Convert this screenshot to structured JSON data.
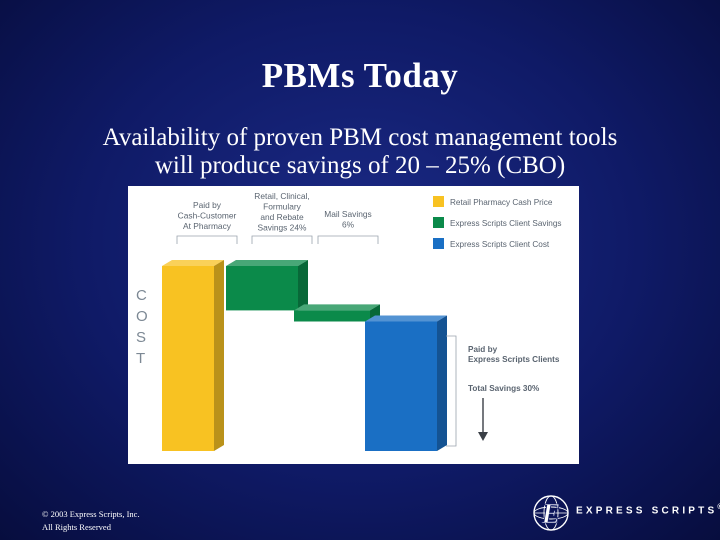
{
  "slide": {
    "title": "PBMs Today",
    "subtitle_line1": "Availability of proven PBM cost management tools",
    "subtitle_line2": "will produce savings of 20 – 25% (CBO)"
  },
  "footer": {
    "line1": "© 2003 Express Scripts, Inc.",
    "line2": "All Rights Reserved"
  },
  "logo": {
    "text": "EXPRESS SCRIPTS",
    "trademark": "®"
  },
  "chart_data": {
    "type": "waterfall",
    "title": "",
    "y_axis_letters": [
      "C",
      "O",
      "S",
      "T"
    ],
    "steps": [
      {
        "name": "Paid by Cash-Customer At Pharmacy",
        "label_lines": [
          "Paid by",
          "Cash-Customer",
          "At Pharmacy"
        ],
        "kind": "total",
        "start": 0,
        "end": 100,
        "color": "#f8c222"
      },
      {
        "name": "Retail, Clinical, Formulary and Rebate Savings 24%",
        "label_lines": [
          "Retail, Clinical,",
          "Formulary",
          "and Rebate",
          "Savings 24%"
        ],
        "kind": "decrease",
        "start": 100,
        "end": 76,
        "color": "#0b8a4a"
      },
      {
        "name": "Mail Savings 6%",
        "label_lines": [
          "Mail Savings",
          "6%"
        ],
        "kind": "decrease",
        "start": 76,
        "end": 70,
        "color": "#0b8a4a"
      },
      {
        "name": "Paid by Express Scripts Clients",
        "label_lines": [
          "Paid by",
          "Express Scripts Clients"
        ],
        "kind": "total",
        "start": 0,
        "end": 70,
        "color": "#1a6fc4"
      }
    ],
    "legend": [
      {
        "label": "Retail Pharmacy Cash Price",
        "color": "#f8c222"
      },
      {
        "label": "Express Scripts Client Savings",
        "color": "#0b8a4a"
      },
      {
        "label": "Express Scripts Client Cost",
        "color": "#1a6fc4"
      }
    ],
    "annotation": "Total Savings 30%",
    "legend_position": "top-right"
  },
  "colors": {
    "background": "#0f1a66",
    "yellow": "#f8c222",
    "green": "#0b8a4a",
    "blue": "#1a6fc4",
    "bracket": "#9aa3ad",
    "text_gray": "#5a6470",
    "cost_letters": "#7c8894"
  }
}
